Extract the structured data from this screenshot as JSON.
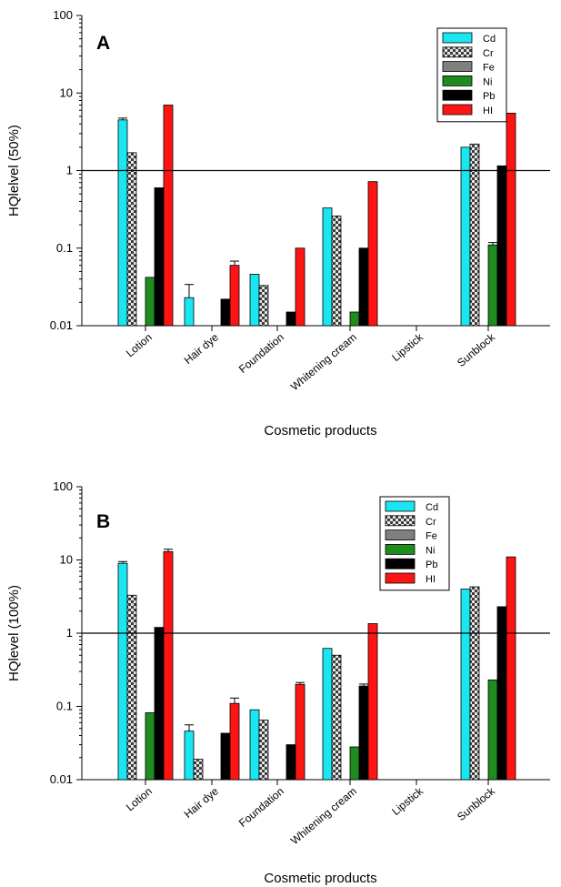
{
  "chart_data": [
    {
      "type": "bar",
      "panel_label": "A",
      "ylabel": "HQlelvel (50%)",
      "xlabel": "Cosmetic products",
      "yscale": "log",
      "ylim": [
        0.01,
        100
      ],
      "ytick_labels": [
        "0.01",
        "0.1",
        "1",
        "10",
        "100"
      ],
      "reference_line": 1,
      "legend_position": "top-right",
      "categories": [
        "Lotion",
        "Hair dye",
        "Foundation",
        "Whitening cream",
        "Lipstick",
        "Sunblock"
      ],
      "series": [
        {
          "name": "Cd",
          "color": "#19e6f0",
          "pattern": "solid",
          "values": [
            4.5,
            0.023,
            0.046,
            0.33,
            null,
            2.0
          ],
          "error": [
            0.25,
            0.011,
            null,
            null,
            null,
            null
          ]
        },
        {
          "name": "Cr",
          "color": "#b4b4b4",
          "pattern": "checker",
          "values": [
            1.7,
            null,
            0.033,
            0.26,
            null,
            2.2
          ],
          "error": [
            null,
            null,
            null,
            null,
            null,
            null
          ]
        },
        {
          "name": "Fe",
          "color": "#7f7f7f",
          "pattern": "solid",
          "values": [
            null,
            null,
            null,
            null,
            null,
            null
          ],
          "error": [
            null,
            null,
            null,
            null,
            null,
            null
          ]
        },
        {
          "name": "Ni",
          "color": "#1e8c1e",
          "pattern": "solid",
          "values": [
            0.042,
            null,
            null,
            0.015,
            null,
            0.11
          ],
          "error": [
            null,
            null,
            null,
            null,
            null,
            0.008
          ]
        },
        {
          "name": "Pb",
          "color": "#000000",
          "pattern": "solid",
          "values": [
            0.6,
            0.022,
            0.015,
            0.1,
            null,
            1.15
          ],
          "error": [
            null,
            null,
            null,
            null,
            null,
            null
          ]
        },
        {
          "name": "HI",
          "color": "#ff1414",
          "pattern": "solid",
          "values": [
            7.0,
            0.06,
            0.1,
            0.72,
            null,
            5.5
          ],
          "error": [
            null,
            0.008,
            null,
            null,
            null,
            null
          ]
        }
      ]
    },
    {
      "type": "bar",
      "panel_label": "B",
      "ylabel": "HQlevel (100%)",
      "xlabel": "Cosmetic products",
      "yscale": "log",
      "ylim": [
        0.01,
        100
      ],
      "ytick_labels": [
        "0.01",
        "0.1",
        "1",
        "10",
        "100"
      ],
      "reference_line": 1,
      "legend_position": "top-right",
      "categories": [
        "Lotion",
        "Hair dye",
        "Foundation",
        "Whitening cream",
        "Lipstick",
        "Sunblock"
      ],
      "series": [
        {
          "name": "Cd",
          "color": "#19e6f0",
          "pattern": "solid",
          "values": [
            9.0,
            0.046,
            0.09,
            0.62,
            null,
            4.0
          ],
          "error": [
            0.5,
            0.01,
            null,
            null,
            null,
            null
          ]
        },
        {
          "name": "Cr",
          "color": "#b4b4b4",
          "pattern": "checker",
          "values": [
            3.3,
            0.019,
            0.065,
            0.5,
            null,
            4.3
          ],
          "error": [
            null,
            null,
            null,
            null,
            null,
            null
          ]
        },
        {
          "name": "Fe",
          "color": "#7f7f7f",
          "pattern": "solid",
          "values": [
            null,
            null,
            null,
            null,
            null,
            null
          ],
          "error": [
            null,
            null,
            null,
            null,
            null,
            null
          ]
        },
        {
          "name": "Ni",
          "color": "#1e8c1e",
          "pattern": "solid",
          "values": [
            0.082,
            null,
            null,
            0.028,
            null,
            0.23
          ],
          "error": [
            null,
            null,
            null,
            null,
            null,
            null
          ]
        },
        {
          "name": "Pb",
          "color": "#000000",
          "pattern": "solid",
          "values": [
            1.2,
            0.043,
            0.03,
            0.19,
            null,
            2.3
          ],
          "error": [
            null,
            null,
            null,
            0.012,
            null,
            null
          ]
        },
        {
          "name": "HI",
          "color": "#ff1414",
          "pattern": "solid",
          "values": [
            13.0,
            0.11,
            0.2,
            1.35,
            null,
            11.0
          ],
          "error": [
            1.0,
            0.02,
            0.012,
            null,
            null,
            null
          ]
        }
      ]
    }
  ]
}
